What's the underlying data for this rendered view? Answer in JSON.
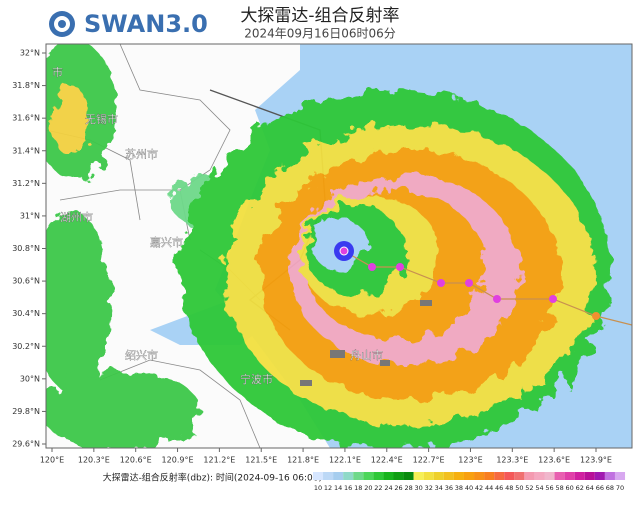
{
  "header": {
    "logo": "SWAN3.0",
    "title": "大探雷达-组合反射率",
    "time": "2024年09月16日06时06分"
  },
  "map": {
    "lat_ticks": [
      {
        "value": 32,
        "label": "32°N"
      },
      {
        "value": 31.8,
        "label": "31.8°N"
      },
      {
        "value": 31.6,
        "label": "31.6°N"
      },
      {
        "value": 31.4,
        "label": "31.4°N"
      },
      {
        "value": 31.2,
        "label": "31.2°N"
      },
      {
        "value": 31,
        "label": "31°N"
      },
      {
        "value": 30.8,
        "label": "30.8°N"
      },
      {
        "value": 30.6,
        "label": "30.6°N"
      },
      {
        "value": 30.4,
        "label": "30.4°N"
      },
      {
        "value": 30.2,
        "label": "30.2°N"
      },
      {
        "value": 30,
        "label": "30°N"
      },
      {
        "value": 29.8,
        "label": "29.8°N"
      },
      {
        "value": 29.6,
        "label": "29.6°N"
      }
    ],
    "lon_ticks": [
      {
        "value": 120,
        "label": "120°E"
      },
      {
        "value": 120.3,
        "label": "120.3°E"
      },
      {
        "value": 120.6,
        "label": "120.6°E"
      },
      {
        "value": 120.9,
        "label": "120.9°E"
      },
      {
        "value": 121.2,
        "label": "121.2°E"
      },
      {
        "value": 121.5,
        "label": "121.5°E"
      },
      {
        "value": 121.8,
        "label": "121.8°E"
      },
      {
        "value": 122.1,
        "label": "122.1°E"
      },
      {
        "value": 122.4,
        "label": "122.4°E"
      },
      {
        "value": 122.7,
        "label": "122.7°E"
      },
      {
        "value": 123,
        "label": "123°E"
      },
      {
        "value": 123.3,
        "label": "123.3°E"
      },
      {
        "value": 123.6,
        "label": "123.6°E"
      },
      {
        "value": 123.9,
        "label": "123.9°E"
      }
    ],
    "places": [
      "市",
      "无锡市",
      "苏州市",
      "湖州市",
      "嘉兴市",
      "绍兴市",
      "宁波市",
      "舟山市"
    ]
  },
  "legend": {
    "caption": "大探雷达-组合反射率(dbz): 时间(2024-09-16 06:06)",
    "levels": [
      10,
      12,
      14,
      16,
      18,
      20,
      22,
      24,
      26,
      28,
      30,
      32,
      34,
      36,
      38,
      40,
      42,
      44,
      46,
      48,
      50,
      52,
      54,
      56,
      58,
      60,
      62,
      64,
      66,
      68,
      70
    ],
    "colors": [
      "#d6e6ff",
      "#bcd8f6",
      "#a6cdee",
      "#8fd9c8",
      "#6ed98a",
      "#4cd65a",
      "#2ec838",
      "#18b41e",
      "#109e14",
      "#0a8a0e",
      "#f6f056",
      "#f2e040",
      "#eed02c",
      "#f2c020",
      "#f6b010",
      "#f8a010",
      "#f89018",
      "#f87e20",
      "#f66a40",
      "#f45858",
      "#f07070",
      "#f49ab0",
      "#f4a8c0",
      "#f0b6cc",
      "#e860b0",
      "#e040a8",
      "#d020a0",
      "#b81098",
      "#a018b0",
      "#c070e0",
      "#d8a8f0"
    ]
  }
}
